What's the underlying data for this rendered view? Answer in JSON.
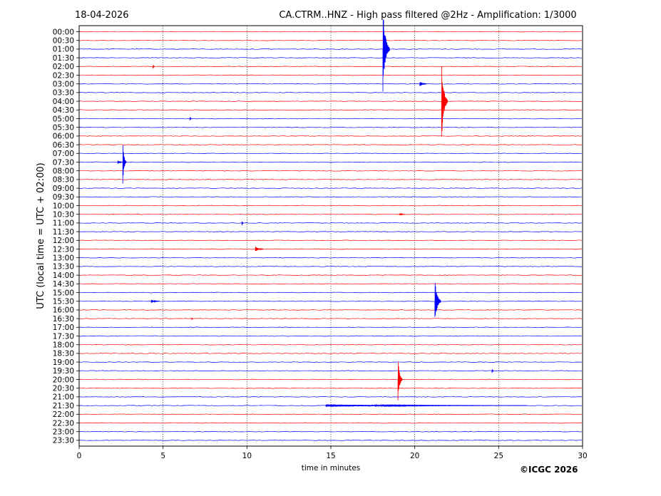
{
  "header": {
    "date": "18-04-2026",
    "title": "CA.CTRM..HNZ - High pass filtered @2Hz - Amplification: 1/3000"
  },
  "copyright": "©ICGC 2026",
  "chart_data": {
    "type": "line",
    "subtype": "helicorder",
    "xlabel": "time in minutes",
    "ylabel": "UTC (local time = UTC + 02:00)",
    "xlim": [
      0,
      30
    ],
    "xticks": [
      0,
      5,
      10,
      15,
      20,
      25,
      30
    ],
    "grid": "vertical dotted at 5-minute intervals",
    "trace_colors": [
      "#ff0000",
      "#0000ff"
    ],
    "color_pattern": "alternating per row pair (red, red, blue, blue)",
    "rows": [
      "00:00",
      "00:30",
      "01:00",
      "01:30",
      "02:00",
      "02:30",
      "03:00",
      "03:30",
      "04:00",
      "04:30",
      "05:00",
      "05:30",
      "06:00",
      "06:30",
      "07:00",
      "07:30",
      "08:00",
      "08:30",
      "09:00",
      "09:30",
      "10:00",
      "10:30",
      "11:00",
      "11:30",
      "12:00",
      "12:30",
      "13:00",
      "13:30",
      "14:00",
      "14:30",
      "15:00",
      "15:30",
      "16:00",
      "16:30",
      "17:00",
      "17:30",
      "18:00",
      "18:30",
      "19:00",
      "19:30",
      "20:00",
      "20:30",
      "21:00",
      "21:30",
      "22:00",
      "22:30",
      "23:00",
      "23:30"
    ],
    "events": [
      {
        "row": "01:00",
        "minute": 18.1,
        "amplitude_rows": 5.0,
        "duration_min": 0.4
      },
      {
        "row": "04:00",
        "minute": 21.6,
        "amplitude_rows": 4.8,
        "duration_min": 0.35
      },
      {
        "row": "07:30",
        "minute": 2.6,
        "amplitude_rows": 2.6,
        "duration_min": 0.2
      },
      {
        "row": "15:30",
        "minute": 21.2,
        "amplitude_rows": 2.8,
        "duration_min": 0.35
      },
      {
        "row": "20:00",
        "minute": 19.0,
        "amplitude_rows": 2.7,
        "duration_min": 0.25
      },
      {
        "row": "21:30",
        "minute": 14.7,
        "amplitude_rows": 0.15,
        "duration_min": 12.0
      },
      {
        "row": "03:00",
        "minute": 20.3,
        "amplitude_rows": 0.35,
        "duration_min": 0.4
      },
      {
        "row": "12:30",
        "minute": 10.5,
        "amplitude_rows": 0.3,
        "duration_min": 0.5
      },
      {
        "row": "07:30",
        "minute": 2.3,
        "amplitude_rows": 0.25,
        "duration_min": 0.3
      },
      {
        "row": "15:30",
        "minute": 4.3,
        "amplitude_rows": 0.2,
        "duration_min": 0.5
      },
      {
        "row": "19:30",
        "minute": 24.6,
        "amplitude_rows": 0.3,
        "duration_min": 0.1
      },
      {
        "row": "11:00",
        "minute": 9.7,
        "amplitude_rows": 0.3,
        "duration_min": 0.1
      },
      {
        "row": "05:00",
        "minute": 6.6,
        "amplitude_rows": 0.3,
        "duration_min": 0.1
      },
      {
        "row": "02:00",
        "minute": 4.4,
        "amplitude_rows": 0.3,
        "duration_min": 0.1
      },
      {
        "row": "10:30",
        "minute": 19.1,
        "amplitude_rows": 0.15,
        "duration_min": 0.3
      },
      {
        "row": "16:30",
        "minute": 6.7,
        "amplitude_rows": 0.15,
        "duration_min": 0.1
      }
    ]
  }
}
